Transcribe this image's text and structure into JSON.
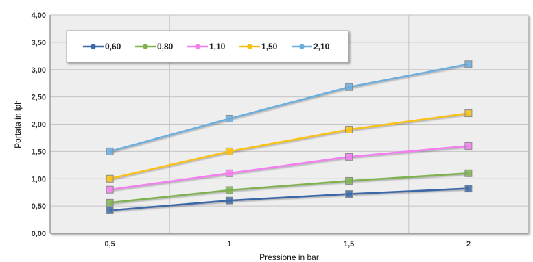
{
  "chart_data": {
    "type": "line",
    "title": "",
    "xlabel": "Pressione in bar",
    "ylabel": "Portata in lph",
    "x": [
      0.5,
      1,
      1.5,
      2
    ],
    "x_tick_labels": [
      "0,5",
      "1",
      "1,5",
      "2"
    ],
    "xlim": [
      0.25,
      2.25
    ],
    "ylim": [
      0,
      4
    ],
    "y_tick_labels": [
      "0,00",
      "0,50",
      "1,00",
      "1,50",
      "2,00",
      "2,50",
      "3,00",
      "3,50",
      "4,00"
    ],
    "grid": true,
    "legend_position": "top-left",
    "series": [
      {
        "name": "0,60",
        "color": "#3d68a8",
        "values": [
          0.42,
          0.6,
          0.72,
          0.82
        ]
      },
      {
        "name": "0,80",
        "color": "#7fb24f",
        "values": [
          0.56,
          0.79,
          0.96,
          1.1
        ]
      },
      {
        "name": "1,10",
        "color": "#f47ef1",
        "values": [
          0.8,
          1.1,
          1.4,
          1.6
        ]
      },
      {
        "name": "1,50",
        "color": "#f9c013",
        "values": [
          1.0,
          1.5,
          1.9,
          2.2
        ]
      },
      {
        "name": "2,10",
        "color": "#6aaedf",
        "values": [
          1.5,
          2.1,
          2.68,
          3.1
        ]
      }
    ]
  }
}
